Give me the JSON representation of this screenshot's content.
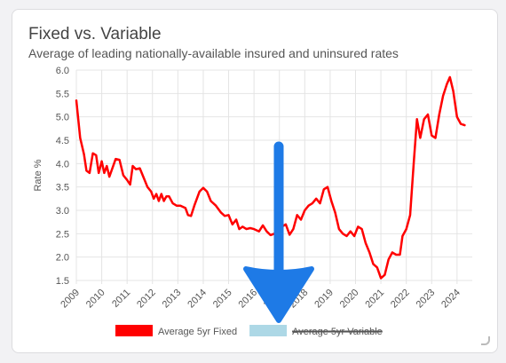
{
  "card": {
    "title": "Fixed vs. Variable",
    "subtitle": "Average of leading nationally-available insured and uninsured rates"
  },
  "chart_data": {
    "type": "line",
    "title": "Fixed vs. Variable",
    "subtitle": "Average of leading nationally-available insured and uninsured rates",
    "xlabel": "",
    "ylabel": "Rate %",
    "ylim": [
      1.5,
      6.0
    ],
    "xlim": [
      2009.0,
      2024.6
    ],
    "y_ticks": [
      "1.5",
      "2.0",
      "2.5",
      "3.0",
      "3.5",
      "4.0",
      "4.5",
      "5.0",
      "5.5",
      "6.0"
    ],
    "x_ticks": [
      "2009",
      "2010",
      "2011",
      "2012",
      "2013",
      "2014",
      "2015",
      "2016",
      "2017",
      "2018",
      "2019",
      "2020",
      "2021",
      "2022",
      "2023",
      "2024"
    ],
    "grid": true,
    "legend_position": "bottom",
    "series": [
      {
        "name": "Average 5yr Fixed",
        "color": "#ff0000",
        "hidden": false,
        "points": [
          [
            2009.0,
            5.35
          ],
          [
            2009.15,
            4.55
          ],
          [
            2009.3,
            4.2
          ],
          [
            2009.4,
            3.85
          ],
          [
            2009.52,
            3.8
          ],
          [
            2009.65,
            4.22
          ],
          [
            2009.78,
            4.18
          ],
          [
            2009.88,
            3.8
          ],
          [
            2010.0,
            4.05
          ],
          [
            2010.1,
            3.8
          ],
          [
            2010.2,
            3.95
          ],
          [
            2010.3,
            3.72
          ],
          [
            2010.42,
            3.9
          ],
          [
            2010.55,
            4.1
          ],
          [
            2010.7,
            4.08
          ],
          [
            2010.85,
            3.75
          ],
          [
            2011.0,
            3.65
          ],
          [
            2011.12,
            3.55
          ],
          [
            2011.22,
            3.95
          ],
          [
            2011.35,
            3.88
          ],
          [
            2011.5,
            3.9
          ],
          [
            2011.65,
            3.7
          ],
          [
            2011.8,
            3.5
          ],
          [
            2011.95,
            3.4
          ],
          [
            2012.05,
            3.25
          ],
          [
            2012.15,
            3.35
          ],
          [
            2012.25,
            3.2
          ],
          [
            2012.35,
            3.35
          ],
          [
            2012.45,
            3.2
          ],
          [
            2012.55,
            3.3
          ],
          [
            2012.65,
            3.3
          ],
          [
            2012.8,
            3.15
          ],
          [
            2012.95,
            3.1
          ],
          [
            2013.1,
            3.1
          ],
          [
            2013.3,
            3.05
          ],
          [
            2013.4,
            2.9
          ],
          [
            2013.52,
            2.88
          ],
          [
            2013.65,
            3.1
          ],
          [
            2013.85,
            3.4
          ],
          [
            2014.0,
            3.48
          ],
          [
            2014.15,
            3.4
          ],
          [
            2014.3,
            3.2
          ],
          [
            2014.5,
            3.1
          ],
          [
            2014.7,
            2.95
          ],
          [
            2014.85,
            2.88
          ],
          [
            2015.0,
            2.9
          ],
          [
            2015.15,
            2.7
          ],
          [
            2015.3,
            2.8
          ],
          [
            2015.42,
            2.6
          ],
          [
            2015.55,
            2.65
          ],
          [
            2015.7,
            2.6
          ],
          [
            2015.85,
            2.62
          ],
          [
            2016.0,
            2.6
          ],
          [
            2016.2,
            2.55
          ],
          [
            2016.35,
            2.68
          ],
          [
            2016.5,
            2.55
          ],
          [
            2016.65,
            2.47
          ],
          [
            2016.8,
            2.5
          ],
          [
            2016.95,
            2.58
          ],
          [
            2017.1,
            2.65
          ],
          [
            2017.25,
            2.7
          ],
          [
            2017.4,
            2.48
          ],
          [
            2017.55,
            2.6
          ],
          [
            2017.7,
            2.9
          ],
          [
            2017.85,
            2.8
          ],
          [
            2018.0,
            3.0
          ],
          [
            2018.15,
            3.1
          ],
          [
            2018.3,
            3.15
          ],
          [
            2018.45,
            3.25
          ],
          [
            2018.6,
            3.15
          ],
          [
            2018.75,
            3.45
          ],
          [
            2018.9,
            3.5
          ],
          [
            2019.05,
            3.2
          ],
          [
            2019.2,
            2.95
          ],
          [
            2019.35,
            2.6
          ],
          [
            2019.5,
            2.5
          ],
          [
            2019.65,
            2.45
          ],
          [
            2019.8,
            2.55
          ],
          [
            2019.95,
            2.45
          ],
          [
            2020.1,
            2.65
          ],
          [
            2020.25,
            2.6
          ],
          [
            2020.4,
            2.3
          ],
          [
            2020.55,
            2.1
          ],
          [
            2020.7,
            1.85
          ],
          [
            2020.85,
            1.78
          ],
          [
            2021.0,
            1.55
          ],
          [
            2021.15,
            1.62
          ],
          [
            2021.3,
            1.95
          ],
          [
            2021.45,
            2.1
          ],
          [
            2021.6,
            2.05
          ],
          [
            2021.75,
            2.05
          ],
          [
            2021.85,
            2.45
          ],
          [
            2022.0,
            2.6
          ],
          [
            2022.15,
            2.9
          ],
          [
            2022.3,
            4.05
          ],
          [
            2022.42,
            4.95
          ],
          [
            2022.55,
            4.55
          ],
          [
            2022.7,
            4.95
          ],
          [
            2022.85,
            5.05
          ],
          [
            2023.0,
            4.6
          ],
          [
            2023.15,
            4.55
          ],
          [
            2023.3,
            5.05
          ],
          [
            2023.45,
            5.45
          ],
          [
            2023.6,
            5.7
          ],
          [
            2023.72,
            5.85
          ],
          [
            2023.85,
            5.55
          ],
          [
            2024.0,
            5.0
          ],
          [
            2024.15,
            4.85
          ],
          [
            2024.3,
            4.82
          ]
        ]
      },
      {
        "name": "Average 5yr Variable",
        "color": "#add8e6",
        "hidden": true,
        "points": []
      }
    ]
  }
}
